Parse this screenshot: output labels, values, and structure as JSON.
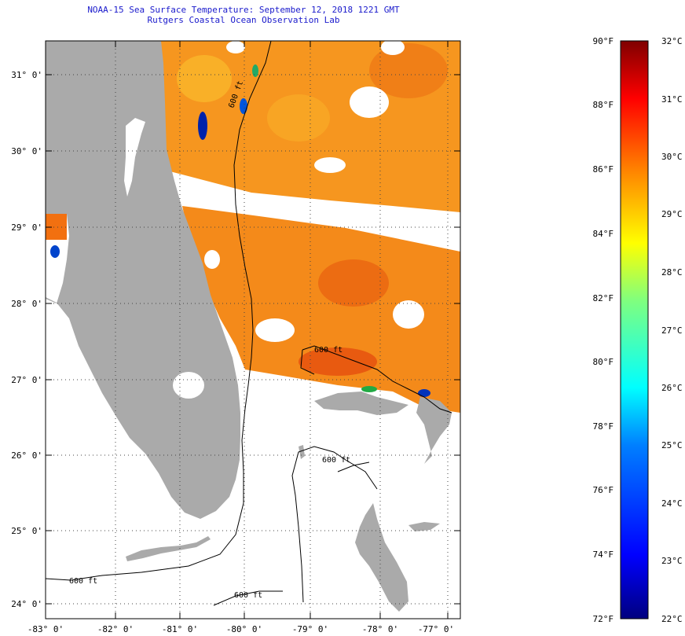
{
  "header": {
    "title": "NOAA-15 Sea Surface Temperature:  September 12, 2018 1221 GMT",
    "subtitle": "Rutgers Coastal Ocean Observation Lab"
  },
  "map": {
    "lat_labels": [
      "31° 0'",
      "30° 0'",
      "29° 0'",
      "28° 0'",
      "27° 0'",
      "26° 0'",
      "25° 0'",
      "24° 0'"
    ],
    "lon_labels": [
      "-83° 0'",
      "-82° 0'",
      "-81° 0'",
      "-80° 0'",
      "-79° 0'",
      "-78° 0'",
      "-77° 0'"
    ],
    "contour_labels": [
      "600 ft",
      "600 ft",
      "600 ft",
      "600 ft",
      "600 ft"
    ],
    "land_color": "#aaaaaa",
    "no_data_color": "#ffffff"
  },
  "colorbar": {
    "fahrenheit_labels": [
      "90°F",
      "88°F",
      "86°F",
      "84°F",
      "82°F",
      "80°F",
      "78°F",
      "76°F",
      "74°F",
      "72°F"
    ],
    "celsius_labels": [
      "32°C",
      "31°C",
      "30°C",
      "29°C",
      "28°C",
      "27°C",
      "26°C",
      "25°C",
      "24°C",
      "23°C",
      "22°C"
    ],
    "range_f": [
      72,
      90
    ],
    "range_c": [
      22,
      32
    ],
    "colors": [
      "#00007f",
      "#0000ff",
      "#007fff",
      "#00ffff",
      "#7fff7f",
      "#ffff00",
      "#ff7f00",
      "#ff0000",
      "#7f0000"
    ]
  }
}
